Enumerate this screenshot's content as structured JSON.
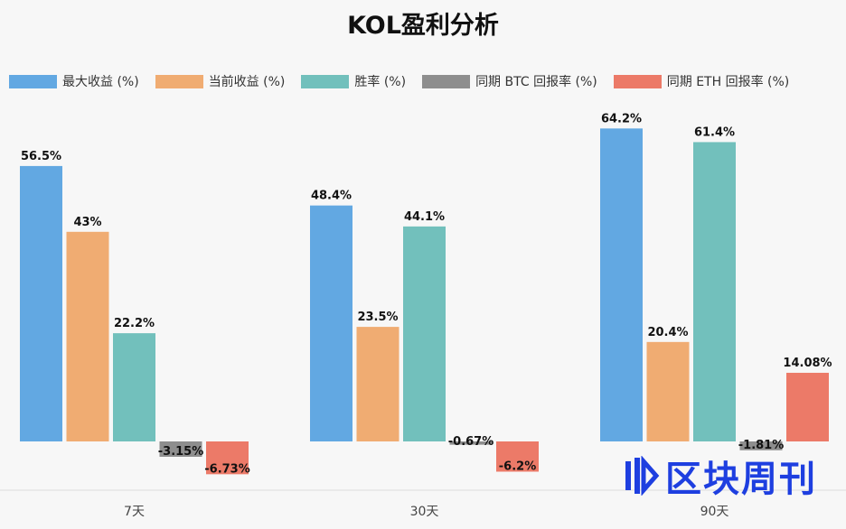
{
  "chart_data": {
    "type": "bar",
    "title": "KOL盈利分析",
    "categories": [
      "7天",
      "30天",
      "90天"
    ],
    "series": [
      {
        "name": "最大收益 (%)",
        "color": "#62a8e2",
        "values": [
          56.5,
          48.4,
          64.2
        ],
        "labels": [
          "56.5%",
          "48.4%",
          "64.2%"
        ]
      },
      {
        "name": "当前收益 (%)",
        "color": "#f0ac72",
        "values": [
          43,
          23.5,
          20.4
        ],
        "labels": [
          "43%",
          "23.5%",
          "20.4%"
        ]
      },
      {
        "name": "胜率 (%)",
        "color": "#72c0bc",
        "values": [
          22.2,
          44.1,
          61.4
        ],
        "labels": [
          "22.2%",
          "44.1%",
          "61.4%"
        ]
      },
      {
        "name": "同期 BTC 回报率 (%)",
        "color": "#8e8e8e",
        "values": [
          -3.15,
          -0.67,
          -1.81
        ],
        "labels": [
          "-3.15%",
          "-0.67%",
          "-1.81%"
        ]
      },
      {
        "name": "同期 ETH 回报率 (%)",
        "color": "#ec7a68",
        "values": [
          -6.73,
          -6.2,
          14.08
        ],
        "labels": [
          "-6.73%",
          "-6.2%",
          "14.08%"
        ]
      }
    ],
    "legend_position": "top",
    "grid": false
  },
  "watermark": {
    "text": "区块周刊"
  }
}
